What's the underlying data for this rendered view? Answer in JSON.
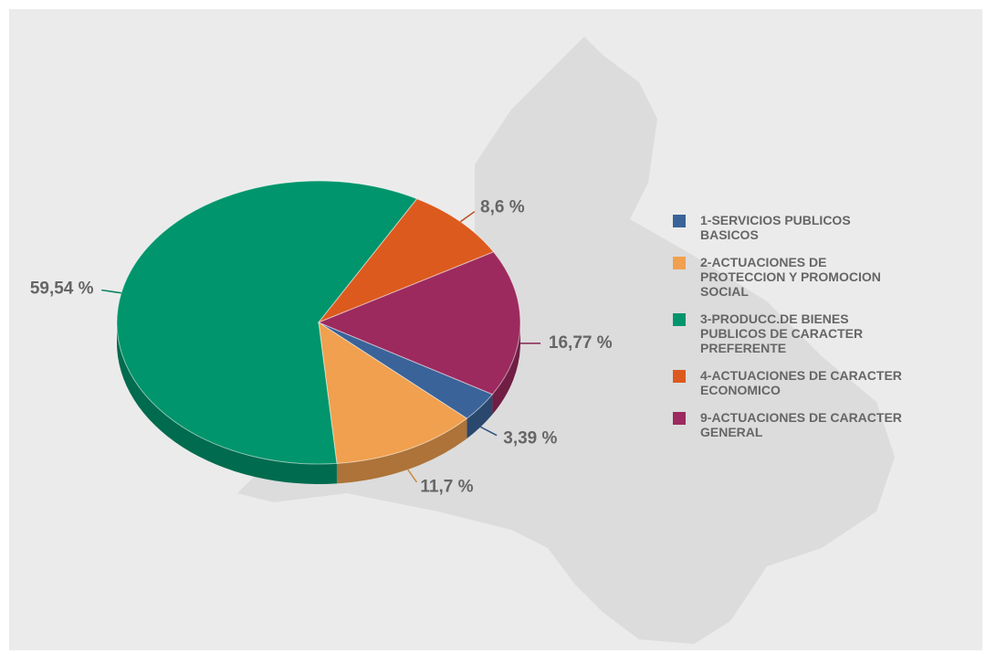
{
  "chart_data": {
    "type": "pie",
    "categories": [
      "1-SERVICIOS PUBLICOS BASICOS",
      "2-ACTUACIONES DE PROTECCION Y PROMOCION SOCIAL",
      "3-PRODUCC.DE BIENES PUBLICOS DE CARACTER PREFERENTE",
      "4-ACTUACIONES DE CARACTER ECONOMICO",
      "9-ACTUACIONES DE CARACTER GENERAL"
    ],
    "values": [
      3.39,
      11.7,
      59.54,
      8.6,
      16.77
    ],
    "value_labels": [
      "3,39 %",
      "11,7 %",
      "59,54 %",
      "8,6 %",
      "16,77 %"
    ],
    "colors": [
      "#3a6399",
      "#f0a04e",
      "#00956c",
      "#dc5a1e",
      "#9c2a5e"
    ],
    "legend": "right"
  }
}
